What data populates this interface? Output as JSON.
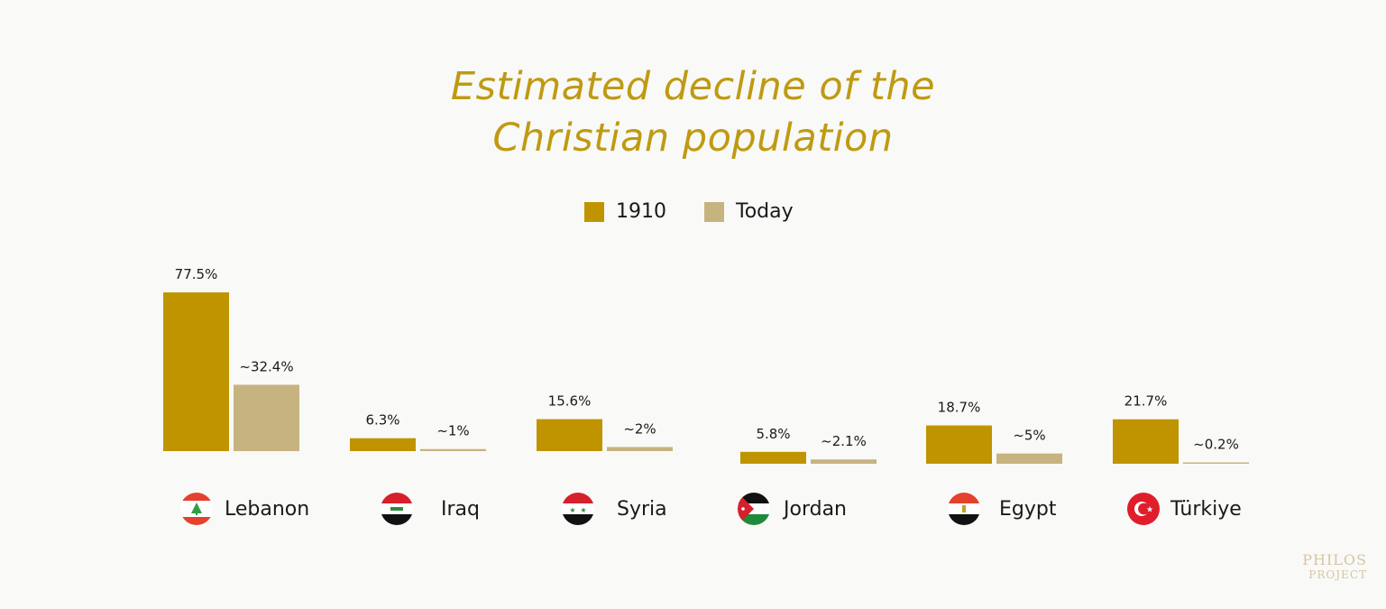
{
  "title": {
    "line1": "Estimated decline of the",
    "line2": "Christian population"
  },
  "colors": {
    "series_1910": "#bf9400",
    "series_today": "#c6b37f",
    "title": "#bf9a12"
  },
  "legend": [
    {
      "label": "1910",
      "color": "#bf9400"
    },
    {
      "label": "Today",
      "color": "#c6b37f"
    }
  ],
  "chart_data": {
    "type": "bar",
    "title": "Estimated decline of the Christian population",
    "categories": [
      "Lebanon",
      "Iraq",
      "Syria",
      "Jordan",
      "Egypt",
      "Türkiye"
    ],
    "series": [
      {
        "name": "1910",
        "values": [
          77.5,
          6.3,
          15.6,
          5.8,
          18.7,
          21.7
        ],
        "labels": [
          "77.5%",
          "6.3%",
          "15.6%",
          "5.8%",
          "18.7%",
          "21.7%"
        ]
      },
      {
        "name": "Today",
        "values": [
          32.4,
          1,
          2,
          2.1,
          5,
          0.2
        ],
        "labels": [
          "~32.4%",
          "~1%",
          "~2%",
          "~2.1%",
          "~5%",
          "~0.2%"
        ]
      }
    ],
    "xlabel": "",
    "ylabel": "",
    "grid": false,
    "legend_position": "top-center"
  },
  "countries": [
    {
      "name": "Lebanon",
      "flag": "lebanon-flag-icon"
    },
    {
      "name": "Iraq",
      "flag": "iraq-flag-icon"
    },
    {
      "name": "Syria",
      "flag": "syria-flag-icon"
    },
    {
      "name": "Jordan",
      "flag": "jordan-flag-icon"
    },
    {
      "name": "Egypt",
      "flag": "egypt-flag-icon"
    },
    {
      "name": "Türkiye",
      "flag": "turkiye-flag-icon"
    }
  ],
  "logo": {
    "line1": "PHILOS",
    "line2": "PROJECT"
  }
}
